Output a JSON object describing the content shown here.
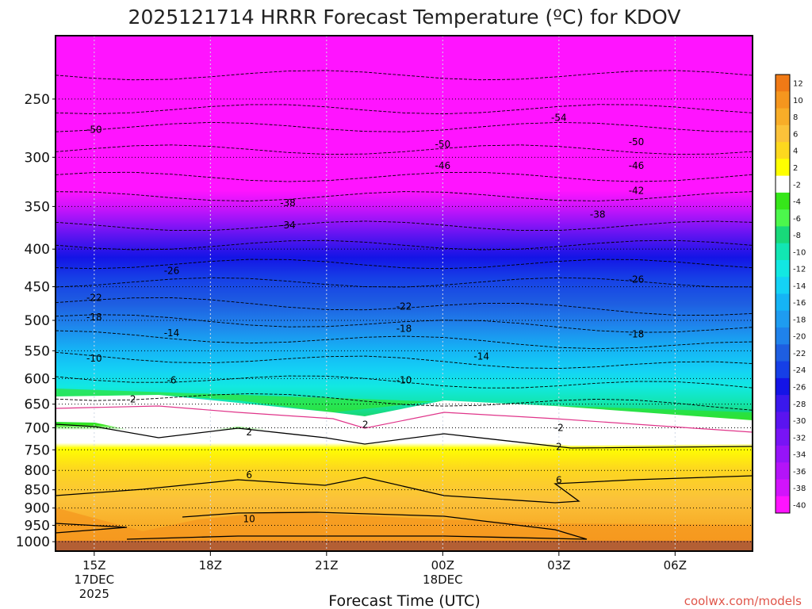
{
  "chart_data": {
    "type": "heatmap",
    "title": "2025121714 HRRR Forecast Temperature (ºC) for KDOV",
    "xlabel": "Forecast Time (UTC)",
    "ylabel": "",
    "credit": "coolwx.com/models",
    "y_scale": "log-pressure",
    "ylim": [
      1030,
      205
    ],
    "y_ticks": [
      250,
      300,
      350,
      400,
      450,
      500,
      550,
      600,
      650,
      700,
      750,
      800,
      850,
      900,
      950,
      1000
    ],
    "xlim": [
      "2025-12-17 14Z",
      "2025-12-18 08Z"
    ],
    "x_ticks": [
      {
        "label": "15Z",
        "date": "17DEC",
        "year": "2025"
      },
      {
        "label": "18Z",
        "date": "",
        "year": ""
      },
      {
        "label": "21Z",
        "date": "",
        "year": ""
      },
      {
        "label": "00Z",
        "date": "18DEC",
        "year": ""
      },
      {
        "label": "03Z",
        "date": "",
        "year": ""
      },
      {
        "label": "06Z",
        "date": "",
        "year": ""
      }
    ],
    "grid": true,
    "colorbar": {
      "labels": [
        "12",
        "10",
        "8",
        "6",
        "4",
        "2",
        "-2",
        "-4",
        "-6",
        "-8",
        "-10",
        "-12",
        "-14",
        "-16",
        "-18",
        "-20",
        "-22",
        "-24",
        "-26",
        "-28",
        "-30",
        "-32",
        "-34",
        "-36",
        "-38",
        "-40"
      ],
      "colors": [
        "#f07a16",
        "#f5961e",
        "#f8ad28",
        "#fbc23a",
        "#fdd81e",
        "#ffff00",
        "#ffffff",
        "#36e61a",
        "#4cf74c",
        "#18d97a",
        "#12e6b3",
        "#12e8e2",
        "#14d2f5",
        "#15b4f5",
        "#1e9cf0",
        "#1f82eb",
        "#1e5ee1",
        "#163fe6",
        "#1414e6",
        "#3a18ec",
        "#5a14f0",
        "#7814f5",
        "#9614f8",
        "#b414f8",
        "#d214fb",
        "#ff14ff"
      ]
    },
    "contour_labels": [
      {
        "text": "-54",
        "x": "2025-12-18 03Z",
        "p": 265
      },
      {
        "text": "-50",
        "x": "2025-12-17 15Z",
        "p": 275
      },
      {
        "text": "-50",
        "x": "2025-12-18 00Z",
        "p": 288
      },
      {
        "text": "-50",
        "x": "2025-12-18 05Z",
        "p": 286
      },
      {
        "text": "-46",
        "x": "2025-12-18 00Z",
        "p": 308
      },
      {
        "text": "-46",
        "x": "2025-12-18 05Z",
        "p": 308
      },
      {
        "text": "-42",
        "x": "2025-12-18 05Z",
        "p": 333
      },
      {
        "text": "-38",
        "x": "2025-12-17 20Z",
        "p": 346
      },
      {
        "text": "-38",
        "x": "2025-12-18 04Z",
        "p": 359
      },
      {
        "text": "-34",
        "x": "2025-12-17 20Z",
        "p": 371
      },
      {
        "text": "-26",
        "x": "2025-12-17 17Z",
        "p": 428
      },
      {
        "text": "-26",
        "x": "2025-12-18 05Z",
        "p": 440
      },
      {
        "text": "-22",
        "x": "2025-12-17 15Z",
        "p": 466
      },
      {
        "text": "-22",
        "x": "2025-12-17 23Z",
        "p": 479
      },
      {
        "text": "-18",
        "x": "2025-12-17 15Z",
        "p": 495
      },
      {
        "text": "-18",
        "x": "2025-12-17 23Z",
        "p": 513
      },
      {
        "text": "-18",
        "x": "2025-12-18 05Z",
        "p": 522
      },
      {
        "text": "-14",
        "x": "2025-12-17 17Z",
        "p": 520
      },
      {
        "text": "-14",
        "x": "2025-12-18 01Z",
        "p": 560
      },
      {
        "text": "-10",
        "x": "2025-12-17 15Z",
        "p": 563
      },
      {
        "text": "-10",
        "x": "2025-12-17 23Z",
        "p": 603
      },
      {
        "text": "-6",
        "x": "2025-12-17 17Z",
        "p": 603
      },
      {
        "text": "2",
        "x": "2025-12-17 16Z",
        "p": 640
      },
      {
        "text": "2",
        "x": "2025-12-17 22Z",
        "p": 693
      },
      {
        "text": "-2",
        "x": "2025-12-18 03Z",
        "p": 700
      },
      {
        "text": "2",
        "x": "2025-12-17 19Z",
        "p": 710
      },
      {
        "text": "2",
        "x": "2025-12-18 03Z",
        "p": 743
      },
      {
        "text": "6",
        "x": "2025-12-17 19Z",
        "p": 812
      },
      {
        "text": "6",
        "x": "2025-12-18 03Z",
        "p": 825
      },
      {
        "text": "10",
        "x": "2025-12-17 19Z",
        "p": 932
      }
    ]
  }
}
